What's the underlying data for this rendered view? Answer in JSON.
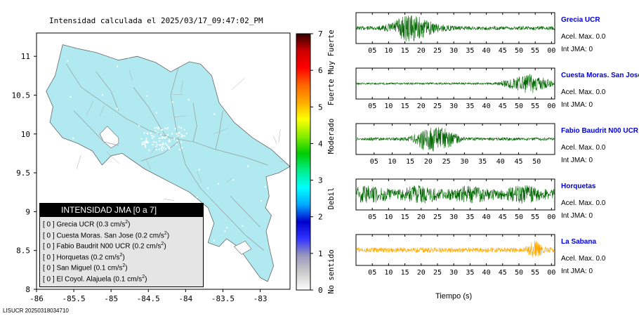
{
  "map": {
    "title": "Intensidad calculada el 2025/03/17_09:47:02_PM",
    "x_ticks": [
      "-86",
      "-85.5",
      "-85",
      "-84.5",
      "-84",
      "-83.5",
      "-83"
    ],
    "x_tick_values": [
      -86,
      -85.5,
      -85,
      -84.5,
      -84,
      -83.5,
      -83
    ],
    "y_ticks": [
      "8",
      "8.5",
      "9",
      "9.5",
      "10",
      "10.5",
      "11"
    ],
    "y_tick_values": [
      8,
      8.5,
      9,
      9.5,
      10,
      10.5,
      11
    ],
    "xlim": [
      -86,
      -82.6
    ],
    "ylim": [
      8,
      11.3
    ],
    "land_color": "#b0eaf0"
  },
  "legend": {
    "title": "INTENSIDAD JMA [0 a 7]",
    "items": [
      {
        "level": "[ 0 ]",
        "name": "Grecia UCR",
        "value": "(0.3 cm/s",
        "sup": "2",
        "close": ")"
      },
      {
        "level": "[ 0 ]",
        "name": "Cuesta Moras. San Jose",
        "value": "(0.2 cm/s",
        "sup": "2",
        "close": ")"
      },
      {
        "level": "[ 0 ]",
        "name": "Fabio Baudrit N00 UCR",
        "value": "(0.2 cm/s",
        "sup": "2",
        "close": ")"
      },
      {
        "level": "[ 0 ]",
        "name": "Horquetas",
        "value": "(0.2 cm/s",
        "sup": "2",
        "close": ")"
      },
      {
        "level": "[ 0 ]",
        "name": "San Miguel",
        "value": "(0.1 cm/s",
        "sup": "2",
        "close": ")"
      },
      {
        "level": "[ 0 ]",
        "name": "El Coyol. Alajuela",
        "value": "(0.1 cm/s",
        "sup": "2",
        "close": ")"
      }
    ]
  },
  "colorbar": {
    "ticks": [
      "0",
      "1",
      "2",
      "3",
      "4",
      "5",
      "6",
      "7"
    ],
    "tick_values": [
      0,
      1,
      2,
      3,
      4,
      5,
      6,
      7
    ],
    "labels": [
      "No sentido",
      "Debil",
      "Moderado",
      "Fuerte",
      "Muy Fuerte"
    ],
    "label_values": [
      0.5,
      2.5,
      4.2,
      5.4,
      6.5
    ],
    "stops": [
      "#ffffff",
      "#cccccc",
      "#9999bb",
      "#3333ff",
      "#0000cc",
      "#00aaff",
      "#00ffff",
      "#00ee88",
      "#00cc00",
      "#88ee00",
      "#ffff00",
      "#ffaa00",
      "#ff6600",
      "#ff0000",
      "#cc0000",
      "#330000"
    ]
  },
  "stations": [
    {
      "name": "Grecia UCR",
      "acel": "Acel. Max. 0.0",
      "int": "Int JMA: 0",
      "color": "#006600",
      "ticks": [
        "05",
        "10",
        "15",
        "20",
        "25",
        "30",
        "35",
        "40",
        "45",
        "50",
        "55",
        "00"
      ],
      "tick_values": [
        5,
        10,
        15,
        20,
        25,
        30,
        35,
        40,
        45,
        50,
        55,
        60
      ],
      "xmax": 61
    },
    {
      "name": "Cuesta Moras. San Jose",
      "acel": "Acel. Max. 0.0",
      "int": "Int JMA: 0",
      "color": "#006600",
      "ticks": [
        "05",
        "10",
        "15",
        "20",
        "25",
        "30",
        "35",
        "40",
        "45",
        "50",
        "55",
        "00"
      ],
      "tick_values": [
        5,
        10,
        15,
        20,
        25,
        30,
        35,
        40,
        45,
        50,
        55,
        60
      ],
      "xmax": 61
    },
    {
      "name": "Fabio Baudrit N00 UCR",
      "acel": "Acel. Max. 0.0",
      "int": "Int JMA: 0",
      "color": "#006600",
      "ticks": [
        "05",
        "10",
        "15",
        "20",
        "25",
        "30",
        "35",
        "40",
        "45",
        "50"
      ],
      "tick_values": [
        5,
        10,
        15,
        20,
        25,
        30,
        35,
        40,
        45,
        50
      ],
      "xmax": 55
    },
    {
      "name": "Horquetas",
      "acel": "Acel. Max. 0.0",
      "int": "Int JMA: 0",
      "color": "#006600",
      "ticks": [
        "05",
        "10",
        "15",
        "20",
        "25",
        "30",
        "35",
        "40",
        "45",
        "50",
        "55",
        "00"
      ],
      "tick_values": [
        5,
        10,
        15,
        20,
        25,
        30,
        35,
        40,
        45,
        50,
        55,
        60
      ],
      "xmax": 61
    },
    {
      "name": "La Sabana",
      "acel": "Acel. Max. 0.0",
      "int": "Int JMA: 0",
      "color": "#ffaa00",
      "ticks": [
        "05",
        "10",
        "15",
        "20",
        "25",
        "30",
        "35",
        "40",
        "45",
        "50",
        "55",
        "00"
      ],
      "tick_values": [
        5,
        10,
        15,
        20,
        25,
        30,
        35,
        40,
        45,
        50,
        55,
        60
      ],
      "xmax": 61
    }
  ],
  "chart_data": {
    "type": "line",
    "xlabel": "Tiempo (s)",
    "series": [
      {
        "name": "Grecia UCR",
        "acel_max": 0.0,
        "int_jma": 0
      },
      {
        "name": "Cuesta Moras, San Jose",
        "acel_max": 0.0,
        "int_jma": 0
      },
      {
        "name": "Fabio Baudrit N00 UCR",
        "acel_max": 0.0,
        "int_jma": 0
      },
      {
        "name": "Horquetas",
        "acel_max": 0.0,
        "int_jma": 0
      },
      {
        "name": "La Sabana",
        "acel_max": 0.0,
        "int_jma": 0
      }
    ]
  },
  "footer": "LISUCR 20250318034710"
}
